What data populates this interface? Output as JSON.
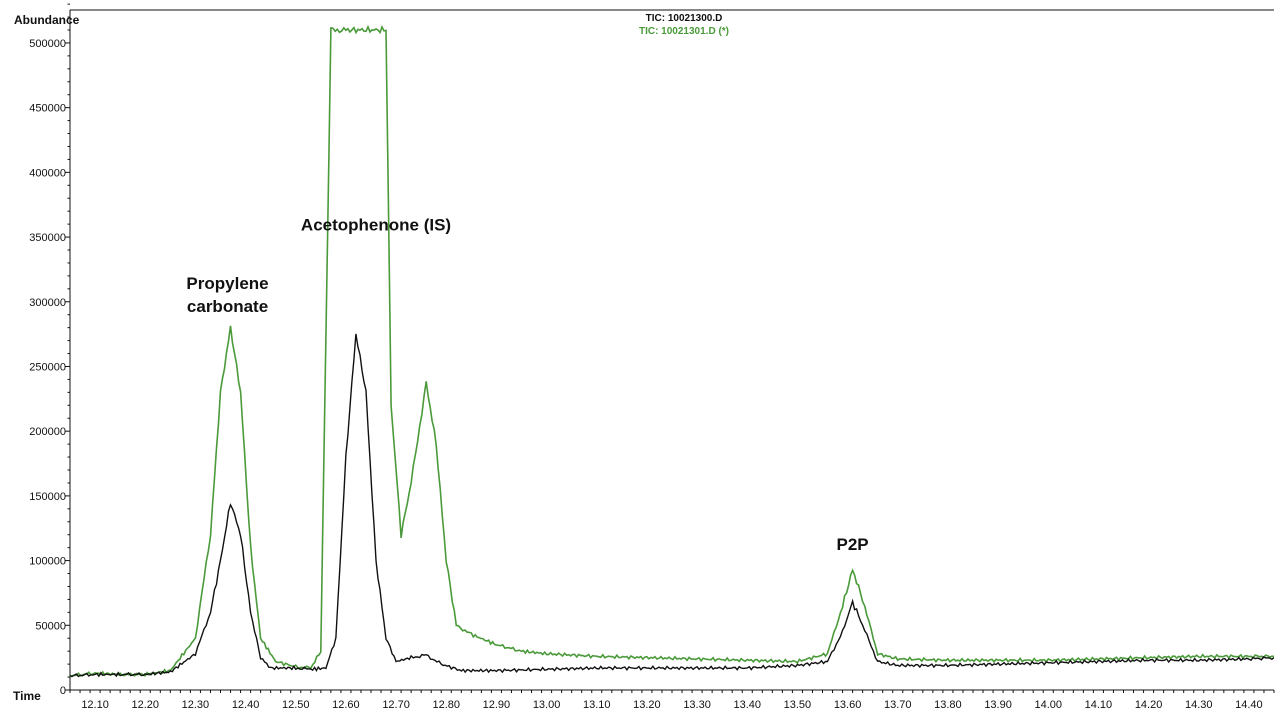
{
  "chart_data": {
    "type": "line",
    "xlabel": "Time",
    "ylabel": "Abundance",
    "xlim": [
      12.05,
      14.45
    ],
    "ylim": [
      0,
      510000
    ],
    "x_ticks": [
      "12.10",
      "12.20",
      "12.30",
      "12.40",
      "12.50",
      "12.60",
      "12.70",
      "12.80",
      "12.90",
      "13.00",
      "13.10",
      "13.20",
      "13.30",
      "13.40",
      "13.50",
      "13.60",
      "13.70",
      "13.80",
      "13.90",
      "14.00",
      "14.10",
      "14.20",
      "14.30",
      "14.40"
    ],
    "y_ticks": [
      "0",
      "50000",
      "100000",
      "150000",
      "200000",
      "250000",
      "300000",
      "350000",
      "400000",
      "450000",
      "500000"
    ],
    "grid": false,
    "legend_position": "top-center",
    "series": [
      {
        "name": "TIC: 10021300.D",
        "color": "#111111",
        "points": [
          [
            12.05,
            11000
          ],
          [
            12.1,
            12000
          ],
          [
            12.15,
            12000
          ],
          [
            12.2,
            12000
          ],
          [
            12.25,
            14000
          ],
          [
            12.3,
            28000
          ],
          [
            12.33,
            60000
          ],
          [
            12.35,
            100000
          ],
          [
            12.37,
            145000
          ],
          [
            12.39,
            120000
          ],
          [
            12.41,
            60000
          ],
          [
            12.43,
            25000
          ],
          [
            12.45,
            17000
          ],
          [
            12.5,
            17000
          ],
          [
            12.53,
            16000
          ],
          [
            12.56,
            17000
          ],
          [
            12.58,
            40000
          ],
          [
            12.6,
            180000
          ],
          [
            12.62,
            275000
          ],
          [
            12.64,
            230000
          ],
          [
            12.66,
            100000
          ],
          [
            12.68,
            40000
          ],
          [
            12.7,
            22000
          ],
          [
            12.73,
            25000
          ],
          [
            12.76,
            27000
          ],
          [
            12.79,
            20000
          ],
          [
            12.83,
            15000
          ],
          [
            12.9,
            15000
          ],
          [
            13.0,
            16000
          ],
          [
            13.1,
            17000
          ],
          [
            13.2,
            17000
          ],
          [
            13.3,
            17000
          ],
          [
            13.4,
            17000
          ],
          [
            13.5,
            19000
          ],
          [
            13.56,
            22000
          ],
          [
            13.59,
            45000
          ],
          [
            13.61,
            68000
          ],
          [
            13.63,
            50000
          ],
          [
            13.66,
            22000
          ],
          [
            13.7,
            19000
          ],
          [
            13.8,
            19000
          ],
          [
            13.9,
            20000
          ],
          [
            14.0,
            21000
          ],
          [
            14.1,
            22000
          ],
          [
            14.2,
            23000
          ],
          [
            14.3,
            23000
          ],
          [
            14.4,
            24000
          ],
          [
            14.45,
            25000
          ]
        ]
      },
      {
        "name": "TIC: 10021301.D (*)",
        "color": "#4a9a3a",
        "points": [
          [
            12.05,
            11000
          ],
          [
            12.1,
            13000
          ],
          [
            12.15,
            12000
          ],
          [
            12.2,
            12000
          ],
          [
            12.25,
            15000
          ],
          [
            12.3,
            40000
          ],
          [
            12.33,
            120000
          ],
          [
            12.35,
            230000
          ],
          [
            12.37,
            280000
          ],
          [
            12.39,
            230000
          ],
          [
            12.41,
            110000
          ],
          [
            12.43,
            40000
          ],
          [
            12.46,
            22000
          ],
          [
            12.5,
            18000
          ],
          [
            12.53,
            17000
          ],
          [
            12.55,
            30000
          ],
          [
            12.57,
            510000
          ],
          [
            12.6,
            510000
          ],
          [
            12.64,
            510000
          ],
          [
            12.68,
            510000
          ],
          [
            12.69,
            220000
          ],
          [
            12.71,
            120000
          ],
          [
            12.73,
            160000
          ],
          [
            12.76,
            237000
          ],
          [
            12.78,
            190000
          ],
          [
            12.8,
            100000
          ],
          [
            12.82,
            50000
          ],
          [
            12.85,
            43000
          ],
          [
            12.9,
            35000
          ],
          [
            12.95,
            30000
          ],
          [
            13.0,
            28000
          ],
          [
            13.1,
            26000
          ],
          [
            13.2,
            25000
          ],
          [
            13.3,
            24000
          ],
          [
            13.4,
            23000
          ],
          [
            13.5,
            22000
          ],
          [
            13.56,
            28000
          ],
          [
            13.59,
            65000
          ],
          [
            13.61,
            93000
          ],
          [
            13.63,
            70000
          ],
          [
            13.66,
            28000
          ],
          [
            13.7,
            24000
          ],
          [
            13.8,
            23000
          ],
          [
            13.9,
            23000
          ],
          [
            14.0,
            23000
          ],
          [
            14.1,
            24000
          ],
          [
            14.2,
            25000
          ],
          [
            14.3,
            26000
          ],
          [
            14.4,
            26000
          ],
          [
            14.45,
            26000
          ]
        ]
      }
    ],
    "annotations": [
      {
        "text": "Propylene",
        "x": 12.37,
        "y": 310000
      },
      {
        "text": "carbonate",
        "x": 12.37,
        "y": 292000
      },
      {
        "text": "Acetophenone (IS)",
        "x": 12.66,
        "y": 355000
      },
      {
        "text": "P2P",
        "x": 13.61,
        "y": 108000
      }
    ]
  }
}
